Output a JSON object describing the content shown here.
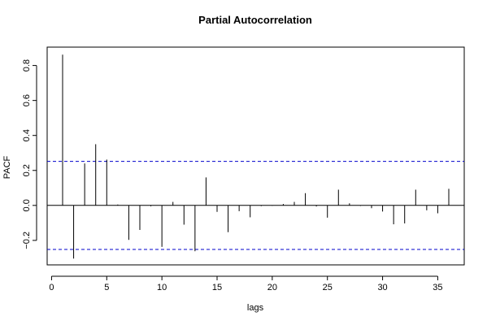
{
  "chart_data": {
    "type": "bar",
    "title": "Partial Autocorrelation",
    "xlabel": "lags",
    "ylabel": "PACF",
    "xlim": [
      -0.4,
      37.4
    ],
    "ylim": [
      -0.34,
      0.905
    ],
    "xticks": [
      0,
      5,
      10,
      15,
      20,
      25,
      30,
      35
    ],
    "yticks": [
      -0.2,
      0.0,
      0.2,
      0.4,
      0.6,
      0.8
    ],
    "xtick_labels": [
      "0",
      "5",
      "10",
      "15",
      "20",
      "25",
      "30",
      "35"
    ],
    "ytick_labels": [
      "−0.2",
      "0.0",
      "0.2",
      "0.4",
      "0.6",
      "0.8"
    ],
    "confidence_bounds": [
      0.252,
      -0.252
    ],
    "confidence_color": "#0000cc",
    "lags": [
      1,
      2,
      3,
      4,
      5,
      6,
      7,
      8,
      9,
      10,
      11,
      12,
      13,
      14,
      15,
      16,
      17,
      18,
      19,
      20,
      21,
      22,
      23,
      24,
      25,
      26,
      27,
      28,
      29,
      30,
      31,
      32,
      33,
      34,
      35,
      36
    ],
    "values": [
      0.862,
      -0.304,
      0.24,
      0.35,
      0.262,
      0.005,
      -0.197,
      -0.14,
      -0.005,
      -0.237,
      0.02,
      -0.11,
      -0.262,
      0.16,
      -0.037,
      -0.153,
      -0.033,
      -0.068,
      -0.004,
      -0.002,
      0.008,
      0.02,
      0.07,
      -0.006,
      -0.07,
      0.09,
      0.012,
      -0.003,
      -0.016,
      -0.035,
      -0.108,
      -0.103,
      0.09,
      -0.028,
      -0.045,
      0.095
    ],
    "grid": false
  }
}
